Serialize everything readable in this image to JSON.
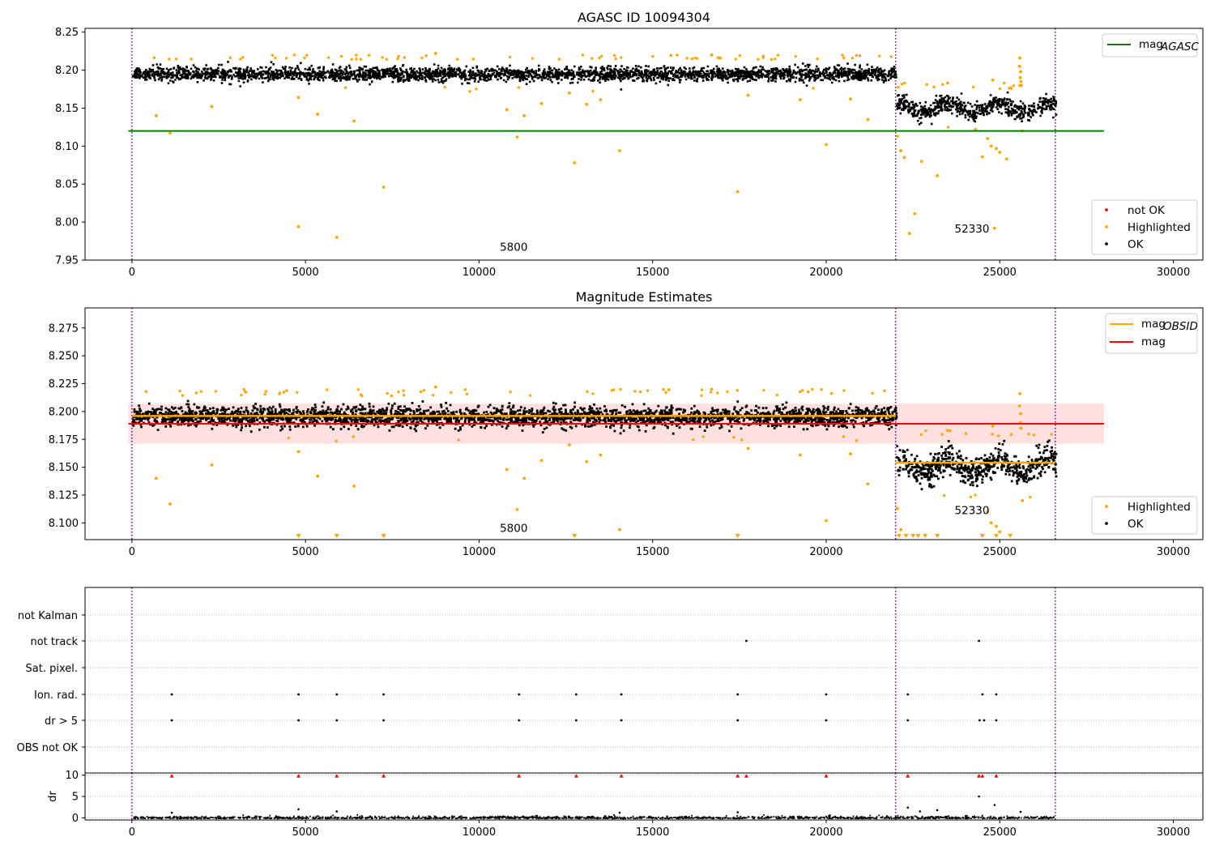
{
  "chart_data": [
    {
      "id": "top",
      "type": "scatter",
      "title": "AGASC ID 10094304",
      "xlim": [
        -1350,
        30850
      ],
      "ylim": [
        7.95,
        8.255
      ],
      "xticks": [
        0,
        5000,
        10000,
        15000,
        20000,
        25000,
        30000
      ],
      "xtick_labels": [
        "0",
        "5000",
        "10000",
        "15000",
        "20000",
        "25000",
        "30000"
      ],
      "yticks": [
        7.95,
        8.0,
        8.05,
        8.1,
        8.15,
        8.2,
        8.25
      ],
      "ytick_labels": [
        "7.95",
        "8.00",
        "8.05",
        "8.10",
        "8.15",
        "8.20",
        "8.25"
      ],
      "vlines": [
        0,
        22000,
        26600
      ],
      "segments": [
        {
          "start": 0,
          "end": 22000,
          "center": 8.196,
          "spread": 0.01
        },
        {
          "start": 22000,
          "end": 26600,
          "center": 8.152,
          "spread": 0.013
        }
      ],
      "hlines": [
        {
          "name": "mag_AGASC",
          "y": 8.12,
          "x_start": -100,
          "x_end": 28000,
          "color": "#008000"
        }
      ],
      "legend_upper": {
        "label": "mag",
        "subscript": "AGASC",
        "color": "#008000",
        "position": "upper-right"
      },
      "legend_lower": {
        "position": "lower-right",
        "entries": [
          {
            "label": "not OK",
            "color": "#ff0000"
          },
          {
            "label": "Highlighted",
            "color": "#ffa500"
          },
          {
            "label": "OK",
            "color": "#000000"
          }
        ]
      },
      "annotations": [
        {
          "text": "5800",
          "x": 11000,
          "y": 7.962
        },
        {
          "text": "52330",
          "x": 24200,
          "y": 7.986
        }
      ],
      "highlighted_points": [
        [
          700,
          8.14
        ],
        [
          1100,
          8.117
        ],
        [
          2300,
          8.152
        ],
        [
          4800,
          8.164
        ],
        [
          4800,
          7.994
        ],
        [
          5350,
          8.142
        ],
        [
          5900,
          7.98
        ],
        [
          6400,
          8.133
        ],
        [
          7250,
          8.046
        ],
        [
          10800,
          8.148
        ],
        [
          11100,
          8.112
        ],
        [
          11300,
          8.14
        ],
        [
          11800,
          8.156
        ],
        [
          12750,
          8.078
        ],
        [
          13100,
          8.155
        ],
        [
          13500,
          8.161
        ],
        [
          14050,
          8.094
        ],
        [
          17450,
          8.04
        ],
        [
          17750,
          8.167
        ],
        [
          19250,
          8.161
        ],
        [
          20000,
          8.102
        ],
        [
          20700,
          8.162
        ],
        [
          21200,
          8.135
        ],
        [
          8750,
          8.222
        ],
        [
          16700,
          8.22
        ],
        [
          12600,
          8.17
        ],
        [
          22050,
          8.113
        ],
        [
          22150,
          8.094
        ],
        [
          22250,
          8.085
        ],
        [
          22400,
          7.985
        ],
        [
          22550,
          8.011
        ],
        [
          22750,
          8.08
        ],
        [
          23200,
          8.061
        ],
        [
          24300,
          8.122
        ],
        [
          24500,
          8.086
        ],
        [
          24650,
          8.11
        ],
        [
          24750,
          8.1
        ],
        [
          24850,
          7.992
        ],
        [
          24900,
          8.097
        ],
        [
          25000,
          8.092
        ],
        [
          25200,
          8.083
        ],
        [
          25650,
          8.12
        ],
        [
          25580,
          8.216
        ],
        [
          25570,
          8.205
        ],
        [
          25600,
          8.198
        ],
        [
          25590,
          8.19
        ],
        [
          25610,
          8.185
        ],
        [
          25620,
          8.18
        ],
        [
          24800,
          8.187
        ],
        [
          23500,
          8.183
        ]
      ]
    },
    {
      "id": "middle",
      "type": "scatter",
      "title": "Magnitude Estimates",
      "xlim": [
        -1350,
        30850
      ],
      "ylim": [
        8.085,
        8.293
      ],
      "xticks": [
        0,
        5000,
        10000,
        15000,
        20000,
        25000,
        30000
      ],
      "xtick_labels": [
        "0",
        "5000",
        "10000",
        "15000",
        "20000",
        "25000",
        "30000"
      ],
      "yticks": [
        8.1,
        8.125,
        8.15,
        8.175,
        8.2,
        8.225,
        8.25,
        8.275
      ],
      "ytick_labels": [
        "8.100",
        "8.125",
        "8.150",
        "8.175",
        "8.200",
        "8.225",
        "8.250",
        "8.275"
      ],
      "vlines": [
        0,
        22000,
        26600
      ],
      "segments": [
        {
          "start": 0,
          "end": 22000,
          "center": 8.196,
          "spread": 0.01
        },
        {
          "start": 22000,
          "end": 26600,
          "center": 8.152,
          "spread": 0.013
        }
      ],
      "mag_band": {
        "y": 8.189,
        "low": 8.171,
        "high": 8.207,
        "x_start": -100,
        "x_end": 28000,
        "color": "#ff0000"
      },
      "obsid_lines": [
        {
          "x_start": 0,
          "x_end": 22000,
          "y": 8.196
        },
        {
          "x_start": 22000,
          "x_end": 26600,
          "y": 8.154
        }
      ],
      "legend_upper": {
        "position": "upper-right",
        "entries": [
          {
            "label": "mag",
            "subscript": "OBSID",
            "color": "#ffa500"
          },
          {
            "label": "mag",
            "subscript": "",
            "color": "#ff0000"
          }
        ]
      },
      "legend_lower": {
        "position": "lower-right",
        "entries": [
          {
            "label": "Highlighted",
            "color": "#ffa500"
          },
          {
            "label": "OK",
            "color": "#000000"
          }
        ]
      },
      "annotations": [
        {
          "text": "5800",
          "x": 11000,
          "y": 8.092
        },
        {
          "text": "52330",
          "x": 24200,
          "y": 8.108
        }
      ],
      "outside_markers": [
        4800,
        5900,
        7250,
        12750,
        17450,
        22100,
        22300,
        22500,
        22650,
        22850,
        23200,
        24500,
        24900,
        25300
      ],
      "highlighted_points": [
        [
          700,
          8.14
        ],
        [
          1100,
          8.117
        ],
        [
          2300,
          8.152
        ],
        [
          4800,
          8.164
        ],
        [
          5350,
          8.142
        ],
        [
          6400,
          8.133
        ],
        [
          10800,
          8.148
        ],
        [
          11100,
          8.112
        ],
        [
          11300,
          8.14
        ],
        [
          11800,
          8.156
        ],
        [
          13100,
          8.155
        ],
        [
          13500,
          8.161
        ],
        [
          14050,
          8.094
        ],
        [
          17750,
          8.167
        ],
        [
          19250,
          8.161
        ],
        [
          20000,
          8.102
        ],
        [
          20700,
          8.162
        ],
        [
          21200,
          8.135
        ],
        [
          8750,
          8.222
        ],
        [
          16700,
          8.22
        ],
        [
          12600,
          8.17
        ],
        [
          22050,
          8.113
        ],
        [
          22150,
          8.094
        ],
        [
          24650,
          8.11
        ],
        [
          24750,
          8.1
        ],
        [
          24900,
          8.097
        ],
        [
          25000,
          8.092
        ],
        [
          25650,
          8.12
        ],
        [
          25580,
          8.216
        ],
        [
          25570,
          8.205
        ],
        [
          25600,
          8.198
        ],
        [
          25590,
          8.19
        ],
        [
          25610,
          8.185
        ],
        [
          24800,
          8.187
        ],
        [
          23500,
          8.183
        ]
      ]
    },
    {
      "id": "flags",
      "type": "scatter",
      "xlim": [
        -1350,
        30850
      ],
      "ylabels": [
        "not Kalman",
        "not track",
        "Sat. pixel.",
        "Ion. rad.",
        "dr > 5",
        "OBS not OK"
      ],
      "vlines": [
        0,
        22000,
        26600
      ],
      "flag_points": {
        "not Kalman": [],
        "not track": [
          17700,
          24400
        ],
        "Sat. pixel.": [],
        "Ion. rad.": [
          1150,
          4800,
          5900,
          7250,
          11150,
          12800,
          14100,
          17450,
          20000,
          22350,
          24500,
          24900
        ],
        "dr > 5": [
          1150,
          4800,
          5900,
          7250,
          11150,
          12800,
          14100,
          17450,
          20000,
          22350,
          24420,
          24550,
          24900
        ],
        "OBS not OK": []
      }
    },
    {
      "id": "dr",
      "type": "scatter",
      "ylabel": "dr",
      "xlim": [
        -1350,
        30850
      ],
      "ylim": [
        -0.5,
        10.5
      ],
      "xticks": [
        0,
        5000,
        10000,
        15000,
        20000,
        25000,
        30000
      ],
      "xtick_labels": [
        "0",
        "5000",
        "10000",
        "15000",
        "20000",
        "25000",
        "30000"
      ],
      "yticks": [
        0,
        5,
        10
      ],
      "ytick_labels": [
        "0",
        "5",
        "10"
      ],
      "vlines": [
        0,
        22000,
        26600
      ],
      "clipped_markers": [
        1150,
        4800,
        5900,
        7250,
        11150,
        12800,
        14100,
        17450,
        17700,
        20000,
        22350,
        24400,
        24500,
        24900
      ],
      "outliers": [
        [
          1150,
          1.2
        ],
        [
          4800,
          2.0
        ],
        [
          5900,
          1.5
        ],
        [
          14050,
          1.2
        ],
        [
          17450,
          1.3
        ],
        [
          22350,
          2.4
        ],
        [
          22700,
          1.5
        ],
        [
          23200,
          1.8
        ],
        [
          24400,
          5.0
        ],
        [
          24850,
          3.0
        ],
        [
          25600,
          1.4
        ]
      ]
    }
  ]
}
